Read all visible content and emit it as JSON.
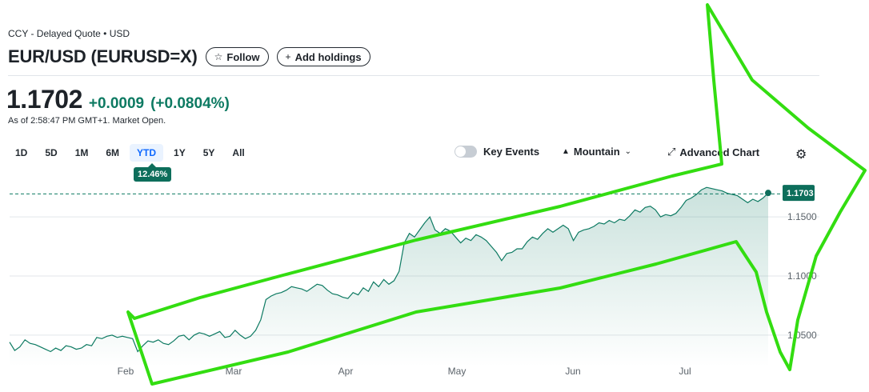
{
  "header": {
    "top_label": "CCY - Delayed Quote • USD",
    "title": "EUR/USD (EURUSD=X)",
    "follow_label": "Follow",
    "holdings_label": "Add holdings"
  },
  "quote": {
    "price": "1.1702",
    "change": "+0.0009",
    "change_pct": "(+0.0804%)",
    "as_of": "As of 2:58:47 PM GMT+1. Market Open."
  },
  "ranges": [
    "1D",
    "5D",
    "1M",
    "6M",
    "YTD",
    "1Y",
    "5Y",
    "All"
  ],
  "active_range": "YTD",
  "ytd_change": "12.46%",
  "tools": {
    "key_events": "Key Events",
    "chart_type": "Mountain",
    "advanced": "Advanced Chart"
  },
  "colors": {
    "line": "#0d7a62",
    "fill": "#0d7a62",
    "annotation": "#33dd11",
    "badge": "#0d6e5b"
  },
  "chart_data": {
    "type": "area",
    "title": "",
    "xlabel": "",
    "ylabel": "",
    "ylim": [
      1.0235,
      1.1765
    ],
    "x_ticks": [
      "Feb",
      "Mar",
      "Apr",
      "May",
      "Jun",
      "Jul"
    ],
    "y_ticks": [
      "1.1500",
      "1.1000",
      "1.0500"
    ],
    "current_value": "1.1703",
    "previous_close": 1.1695,
    "series": [
      {
        "values": [
          1.044,
          1.037,
          1.04,
          1.046,
          1.043,
          1.042,
          1.04,
          1.038,
          1.036,
          1.039,
          1.037,
          1.041,
          1.04,
          1.038,
          1.039,
          1.042,
          1.041,
          1.048,
          1.047,
          1.049,
          1.05,
          1.048,
          1.049,
          1.048,
          1.047,
          1.036,
          1.041,
          1.045,
          1.044,
          1.046,
          1.043,
          1.042,
          1.045,
          1.049,
          1.05,
          1.046,
          1.05,
          1.052,
          1.051,
          1.049,
          1.051,
          1.053,
          1.048,
          1.049,
          1.054,
          1.05,
          1.047,
          1.049,
          1.054,
          1.063,
          1.08,
          1.083,
          1.085,
          1.086,
          1.088,
          1.091,
          1.09,
          1.089,
          1.087,
          1.09,
          1.093,
          1.092,
          1.088,
          1.085,
          1.084,
          1.082,
          1.081,
          1.086,
          1.084,
          1.09,
          1.087,
          1.095,
          1.091,
          1.097,
          1.093,
          1.096,
          1.104,
          1.128,
          1.136,
          1.133,
          1.139,
          1.145,
          1.15,
          1.139,
          1.136,
          1.14,
          1.138,
          1.133,
          1.128,
          1.132,
          1.13,
          1.135,
          1.133,
          1.13,
          1.125,
          1.12,
          1.113,
          1.119,
          1.12,
          1.123,
          1.123,
          1.129,
          1.133,
          1.131,
          1.136,
          1.14,
          1.137,
          1.14,
          1.143,
          1.14,
          1.13,
          1.137,
          1.139,
          1.14,
          1.142,
          1.145,
          1.144,
          1.147,
          1.145,
          1.148,
          1.147,
          1.151,
          1.156,
          1.154,
          1.158,
          1.159,
          1.156,
          1.15,
          1.152,
          1.151,
          1.153,
          1.158,
          1.164,
          1.166,
          1.169,
          1.173,
          1.175,
          1.174,
          1.173,
          1.172,
          1.17,
          1.169,
          1.168,
          1.165,
          1.162,
          1.165,
          1.163,
          1.166,
          1.1703
        ]
      }
    ],
    "annotation": "green hand-drawn arrow pointing up and to the right"
  }
}
